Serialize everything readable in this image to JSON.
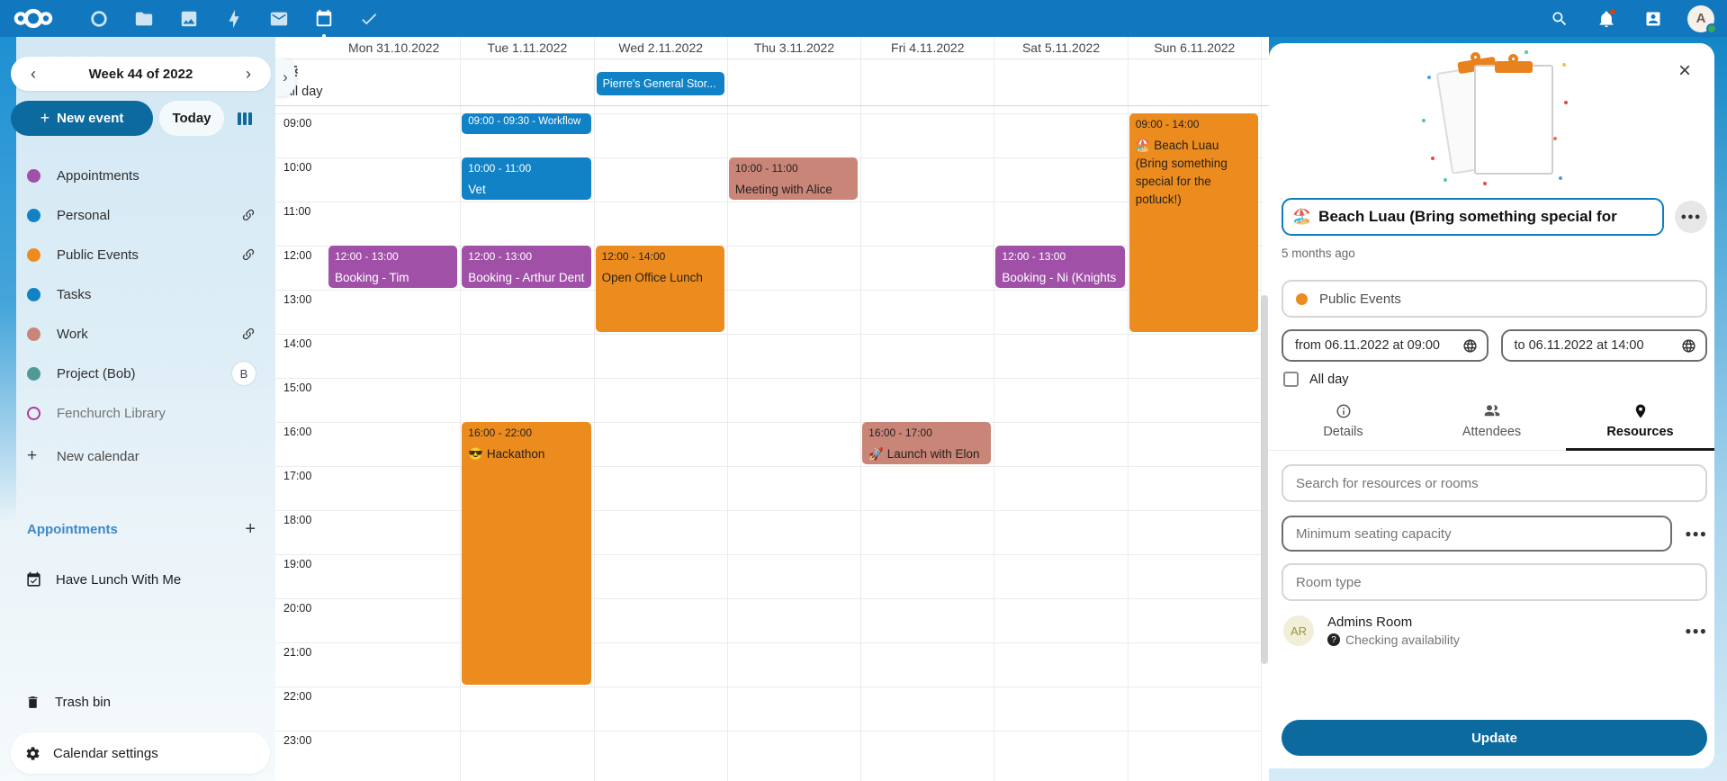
{
  "topbar": {
    "avatar_initial": "A"
  },
  "sidebar": {
    "week_title": "Week 44 of 2022",
    "new_event_label": "New event",
    "today_label": "Today",
    "calendars": [
      {
        "name": "Appointments",
        "color": "#a150a8",
        "outline": false,
        "shared": false,
        "badge": null,
        "muted": false
      },
      {
        "name": "Personal",
        "color": "#1182c6",
        "outline": false,
        "shared": true,
        "badge": null,
        "muted": false
      },
      {
        "name": "Public Events",
        "color": "#ed8c1e",
        "outline": false,
        "shared": true,
        "badge": null,
        "muted": false
      },
      {
        "name": "Tasks",
        "color": "#1182c6",
        "outline": false,
        "shared": false,
        "badge": null,
        "muted": false
      },
      {
        "name": "Work",
        "color": "#c98577",
        "outline": false,
        "shared": true,
        "badge": null,
        "muted": false
      },
      {
        "name": "Project (Bob)",
        "color": "#4f9a96",
        "outline": false,
        "shared": false,
        "badge": "B",
        "muted": false
      },
      {
        "name": "Fenchurch Library",
        "color": "#b23a97",
        "outline": true,
        "shared": false,
        "badge": null,
        "muted": true
      }
    ],
    "new_calendar_label": "New calendar",
    "appointments_heading": "Appointments",
    "appointment_items": [
      "Have Lunch With Me"
    ],
    "trash_label": "Trash bin",
    "settings_label": "Calendar settings"
  },
  "calendar": {
    "all_day_label": "All day",
    "days": [
      "Mon 31.10.2022",
      "Tue 1.11.2022",
      "Wed 2.11.2022",
      "Thu 3.11.2022",
      "Fri 4.11.2022",
      "Sat 5.11.2022",
      "Sun 6.11.2022"
    ],
    "hours": [
      "09:00",
      "10:00",
      "11:00",
      "12:00",
      "13:00",
      "14:00",
      "15:00",
      "16:00",
      "17:00",
      "18:00",
      "19:00",
      "20:00",
      "21:00",
      "22:00",
      "23:00"
    ],
    "allday_event": {
      "day": 2,
      "title": "Pierre's General Stor...",
      "cal": "personal"
    },
    "events": [
      {
        "day": 0,
        "start": 12,
        "end": 13,
        "time": "12:00 - 13:00",
        "title": "Booking - Tim (Wizard)",
        "cal": "appointments",
        "compact": false
      },
      {
        "day": 1,
        "start": 9,
        "end": 9.5,
        "time": "09:00 - 09:30 - Workflow",
        "title": "",
        "cal": "personal",
        "compact": true
      },
      {
        "day": 1,
        "start": 10,
        "end": 11,
        "time": "10:00 - 11:00",
        "title": "Vet",
        "cal": "personal",
        "compact": false
      },
      {
        "day": 1,
        "start": 12,
        "end": 13,
        "time": "12:00 - 13:00",
        "title": "Booking - Arthur Dent",
        "cal": "appointments",
        "compact": false
      },
      {
        "day": 1,
        "start": 16,
        "end": 22,
        "time": "16:00 - 22:00",
        "title": "😎 Hackathon",
        "cal": "public",
        "compact": false
      },
      {
        "day": 2,
        "start": 12,
        "end": 14,
        "time": "12:00 - 14:00",
        "title": "Open Office Lunch",
        "cal": "public",
        "compact": false
      },
      {
        "day": 3,
        "start": 10,
        "end": 11,
        "time": "10:00 - 11:00",
        "title": "Meeting with Alice",
        "cal": "work",
        "compact": false
      },
      {
        "day": 4,
        "start": 16,
        "end": 17,
        "time": "16:00 - 17:00",
        "title": "🚀 Launch with Elon",
        "cal": "work",
        "compact": false
      },
      {
        "day": 5,
        "start": 12,
        "end": 13,
        "time": "12:00 - 13:00",
        "title": "Booking - Ni (Knights",
        "cal": "appointments",
        "compact": false
      },
      {
        "day": 6,
        "start": 9,
        "end": 14,
        "time": "09:00 - 14:00",
        "title": "🏖️ Beach Luau (Bring something special for the potluck!)",
        "cal": "public",
        "compact": false
      }
    ]
  },
  "event_colors": {
    "appointments": {
      "bg": "#a150a8",
      "text": "#ffffff"
    },
    "personal": {
      "bg": "#1182c6",
      "text": "#ffffff"
    },
    "public": {
      "bg": "#ed8c1e",
      "text": "#26221f"
    },
    "work": {
      "bg": "#c98577",
      "text": "#26221f"
    }
  },
  "panel": {
    "title_emoji": "🏖️",
    "title_text": "Beach Luau (Bring something special for",
    "modified": "5 months ago",
    "calendar_select": "Public Events",
    "from_value": "from 06.11.2022 at 09:00",
    "to_value": "to 06.11.2022 at 14:00",
    "all_day_label": "All day",
    "tabs": [
      {
        "label": "Details",
        "active": false
      },
      {
        "label": "Attendees",
        "active": false
      },
      {
        "label": "Resources",
        "active": true
      }
    ],
    "search_placeholder": "Search for resources or rooms",
    "seating_placeholder": "Minimum seating capacity",
    "room_type_placeholder": "Room type",
    "resource": {
      "initials": "AR",
      "name": "Admins Room",
      "status": "Checking availability"
    },
    "update_label": "Update"
  }
}
